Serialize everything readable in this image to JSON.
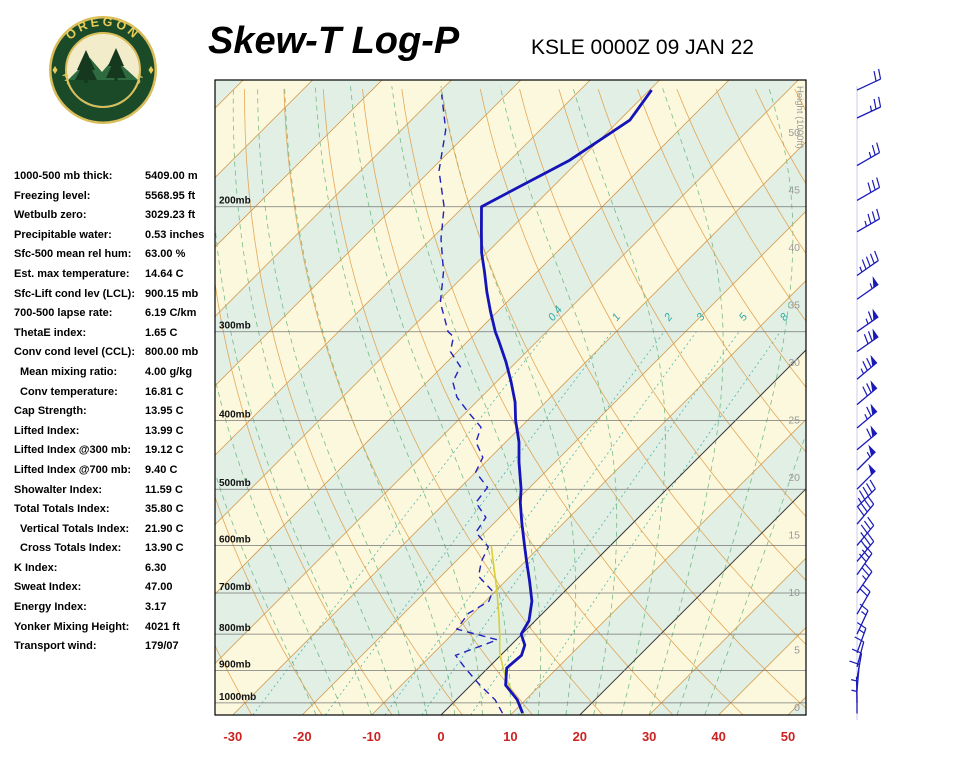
{
  "header": {
    "title": "Skew-T Log-P",
    "station": "KSLE 0000Z 09 JAN 22"
  },
  "logo": {
    "top_text": "OREGON",
    "bottom_text": "DEPARTMENT OF FORESTRY"
  },
  "indices": [
    {
      "label": "1000-500 mb thick:",
      "value": "5409.00 m",
      "indent": false
    },
    {
      "label": "Freezing level:",
      "value": "5568.95 ft",
      "indent": false
    },
    {
      "label": "Wetbulb zero:",
      "value": "3029.23 ft",
      "indent": false
    },
    {
      "label": "Precipitable water:",
      "value": "0.53 inches",
      "indent": false
    },
    {
      "label": "Sfc-500 mean rel hum:",
      "value": "63.00 %",
      "indent": false
    },
    {
      "label": "Est. max temperature:",
      "value": "14.64 C",
      "indent": false
    },
    {
      "label": "Sfc-Lift cond lev (LCL):",
      "value": "900.15 mb",
      "indent": false
    },
    {
      "label": "700-500 lapse rate:",
      "value": "6.19 C/km",
      "indent": false
    },
    {
      "label": "ThetaE index:",
      "value": "1.65 C",
      "indent": false
    },
    {
      "label": "Conv cond level (CCL):",
      "value": "800.00 mb",
      "indent": false
    },
    {
      "label": "Mean mixing ratio:",
      "value": "4.00 g/kg",
      "indent": true
    },
    {
      "label": "Conv temperature:",
      "value": "16.81 C",
      "indent": true
    },
    {
      "label": "Cap Strength:",
      "value": "13.95 C",
      "indent": false
    },
    {
      "label": "Lifted Index:",
      "value": "13.99 C",
      "indent": false
    },
    {
      "label": "Lifted Index @300 mb:",
      "value": "19.12 C",
      "indent": false
    },
    {
      "label": "Lifted Index @700 mb:",
      "value": "9.40 C",
      "indent": false
    },
    {
      "label": "Showalter Index:",
      "value": "11.59 C",
      "indent": false
    },
    {
      "label": "Total Totals Index:",
      "value": "35.80 C",
      "indent": false
    },
    {
      "label": "Vertical Totals Index:",
      "value": "21.90 C",
      "indent": true
    },
    {
      "label": "Cross Totals Index:",
      "value": "13.90 C",
      "indent": true
    },
    {
      "label": "K Index:",
      "value": "6.30",
      "indent": false
    },
    {
      "label": "Sweat Index:",
      "value": "47.00",
      "indent": false
    },
    {
      "label": "Energy Index:",
      "value": "3.17",
      "indent": false
    },
    {
      "label": "Yonker Mixing Height:",
      "value": "4021 ft",
      "indent": false
    },
    {
      "label": "Transport wind:",
      "value": "179/07",
      "indent": false
    }
  ],
  "chart_data": {
    "type": "skewt-log-p",
    "title": "Skew-T Log-P",
    "station_time": "KSLE 0000Z 09 JAN 22",
    "pressure_levels": [
      200,
      300,
      400,
      500,
      600,
      700,
      800,
      900,
      1000
    ],
    "pressure_labels": [
      "200mb",
      "300mb",
      "400mb",
      "500mb",
      "600mb",
      "700mb",
      "800mb",
      "900mb",
      "1000mb"
    ],
    "temp_axis": {
      "ticks": [
        -30,
        -20,
        -10,
        0,
        10,
        20,
        30,
        40,
        50
      ],
      "units": "C"
    },
    "height_axis": {
      "label": "Height (1000ft)",
      "ticks": [
        0,
        5,
        10,
        15,
        20,
        25,
        30,
        35,
        40,
        45,
        50
      ]
    },
    "mixing_ratio_lines": [
      0.4,
      1,
      2,
      3,
      5,
      8
    ],
    "temperature_profile": [
      [
        1034,
        11.5
      ],
      [
        990,
        8.8
      ],
      [
        944,
        5.0
      ],
      [
        893,
        2.7
      ],
      [
        857,
        3.0
      ],
      [
        829,
        2.0
      ],
      [
        800,
        -0.1
      ],
      [
        766,
        -0.9
      ],
      [
        719,
        -3.3
      ],
      [
        674,
        -6.5
      ],
      [
        632,
        -9.8
      ],
      [
        600,
        -12.4
      ],
      [
        557,
        -16.1
      ],
      [
        522,
        -19.2
      ],
      [
        500,
        -21.0
      ],
      [
        458,
        -25.2
      ],
      [
        429,
        -28.1
      ],
      [
        400,
        -31.7
      ],
      [
        377,
        -34.4
      ],
      [
        353,
        -37.9
      ],
      [
        331,
        -41.5
      ],
      [
        310,
        -45.4
      ],
      [
        300,
        -47.4
      ],
      [
        281,
        -51.0
      ],
      [
        264,
        -54.3
      ],
      [
        247,
        -57.6
      ],
      [
        232,
        -60.8
      ],
      [
        217,
        -63.8
      ],
      [
        200,
        -67.4
      ],
      [
        172,
        -61.4
      ],
      [
        151,
        -58.5
      ],
      [
        137,
        -59.7
      ]
    ],
    "dewpoint_profile": [
      [
        1034,
        8.6
      ],
      [
        990,
        5.6
      ],
      [
        944,
        1.3
      ],
      [
        893,
        -3.3
      ],
      [
        857,
        -6.5
      ],
      [
        815,
        -2.7
      ],
      [
        787,
        -10.1
      ],
      [
        748,
        -10.7
      ],
      [
        719,
        -9.5
      ],
      [
        696,
        -10.4
      ],
      [
        663,
        -14.6
      ],
      [
        632,
        -16.3
      ],
      [
        603,
        -17.4
      ],
      [
        575,
        -21.3
      ],
      [
        548,
        -22.0
      ],
      [
        522,
        -25.6
      ],
      [
        497,
        -26.1
      ],
      [
        473,
        -30.0
      ],
      [
        451,
        -31.1
      ],
      [
        429,
        -34.3
      ],
      [
        409,
        -35.7
      ],
      [
        389,
        -39.8
      ],
      [
        371,
        -43.5
      ],
      [
        353,
        -46.3
      ],
      [
        336,
        -47.4
      ],
      [
        320,
        -51.0
      ],
      [
        305,
        -52.7
      ],
      [
        300,
        -54.2
      ],
      [
        273,
        -59.5
      ],
      [
        247,
        -63.5
      ],
      [
        222,
        -68.6
      ],
      [
        200,
        -72.8
      ],
      [
        178,
        -78.7
      ],
      [
        156,
        -83.6
      ],
      [
        139,
        -89.3
      ]
    ],
    "parcel_path": [
      [
        1040,
        12.0
      ],
      [
        980,
        8.0
      ],
      [
        940,
        5.2
      ],
      [
        900,
        2.6
      ],
      [
        850,
        -0.5
      ],
      [
        800,
        -3.2
      ],
      [
        750,
        -6.2
      ],
      [
        700,
        -9.5
      ],
      [
        650,
        -13.2
      ],
      [
        600,
        -17.2
      ]
    ],
    "wind_barbs": [
      [
        1035,
        180,
        7
      ],
      [
        1000,
        179,
        7
      ],
      [
        960,
        185,
        10
      ],
      [
        925,
        190,
        10
      ],
      [
        890,
        195,
        10
      ],
      [
        850,
        200,
        15
      ],
      [
        800,
        205,
        15
      ],
      [
        750,
        210,
        20
      ],
      [
        700,
        215,
        25
      ],
      [
        660,
        215,
        30
      ],
      [
        632,
        220,
        30
      ],
      [
        600,
        220,
        35
      ],
      [
        560,
        220,
        40
      ],
      [
        530,
        225,
        45
      ],
      [
        500,
        225,
        50
      ],
      [
        470,
        225,
        55
      ],
      [
        440,
        230,
        60
      ],
      [
        410,
        230,
        65
      ],
      [
        380,
        230,
        70
      ],
      [
        350,
        230,
        75
      ],
      [
        320,
        235,
        70
      ],
      [
        300,
        235,
        65
      ],
      [
        270,
        235,
        55
      ],
      [
        250,
        235,
        45
      ],
      [
        217,
        240,
        35
      ],
      [
        196,
        240,
        30
      ],
      [
        175,
        240,
        25
      ],
      [
        150,
        245,
        25
      ],
      [
        137,
        245,
        20
      ]
    ],
    "colors": {
      "band_yellow": "#fcf8dd",
      "band_teal": "#e1efe5",
      "isotherm": "#d49a4a",
      "isotherm_dark": "#3a3a3a",
      "dry_adiabat": "#e09a40",
      "moist_adiabat": "#52a86a",
      "mixing_ratio": "#33aaa0",
      "pressure_line": "#777777",
      "temp_line": "#1414b8",
      "dewpoint_line": "#2020c0",
      "parcel_line": "#d8cf3c",
      "wind_barb": "#1a1ab8",
      "axis_temp_label": "#cc2222",
      "height_label": "#999999",
      "border": "#000000"
    }
  }
}
